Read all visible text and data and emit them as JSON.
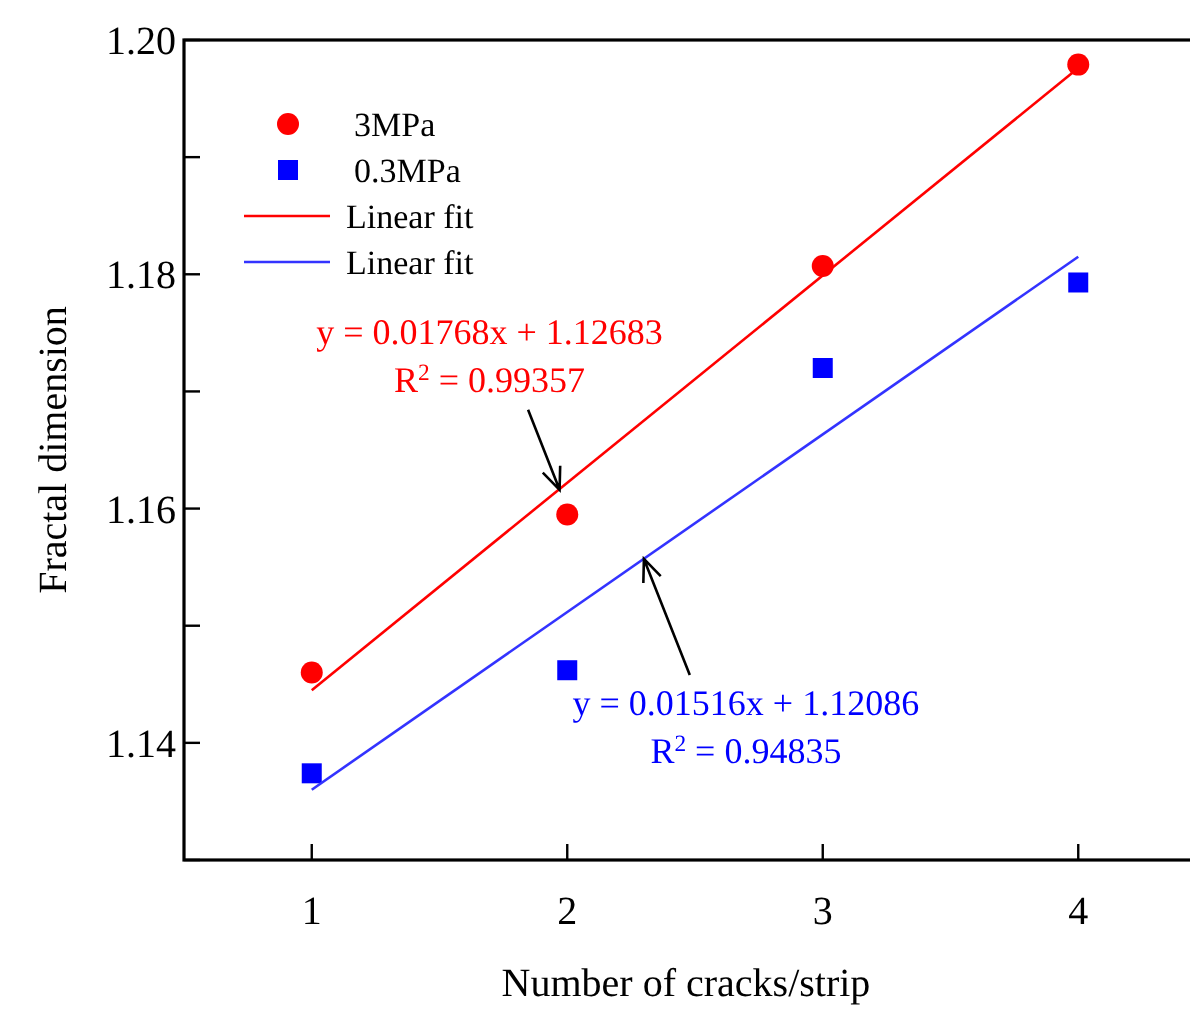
{
  "chart_data": {
    "type": "scatter",
    "xlabel": "Number of cracks/strip",
    "ylabel": "Fractal dimension",
    "xlim": [
      0.5,
      4.5
    ],
    "xticks": [
      1,
      2,
      3,
      4
    ],
    "ylim": [
      1.13,
      1.2
    ],
    "yticks": [
      {
        "value": 1.13,
        "label": null
      },
      {
        "value": 1.14,
        "label": "1.14"
      },
      {
        "value": 1.15,
        "label": null
      },
      {
        "value": 1.16,
        "label": "1.16"
      },
      {
        "value": 1.17,
        "label": null
      },
      {
        "value": 1.18,
        "label": "1.18"
      },
      {
        "value": 1.19,
        "label": null
      },
      {
        "value": 1.2,
        "label": "1.20"
      }
    ],
    "legend": "top left",
    "grid": false,
    "series": [
      {
        "name": "3MPa",
        "marker": "circle",
        "color": "#ff0000",
        "x": [
          1,
          2,
          3,
          4
        ],
        "values": [
          1.146,
          1.1595,
          1.1807,
          1.1979
        ]
      },
      {
        "name": "0.3MPa",
        "marker": "square",
        "color": "#0000ff",
        "x": [
          1,
          2,
          3,
          4
        ],
        "values": [
          1.1374,
          1.1462,
          1.172,
          1.1793
        ]
      },
      {
        "name": "Linear fit",
        "type": "line",
        "marker": "none",
        "color": "#ff0000",
        "x": [
          1,
          4
        ],
        "values": [
          1.1445,
          1.1976
        ]
      },
      {
        "name": "Linear fit",
        "type": "line",
        "marker": "none",
        "color": "#3333ff",
        "x": [
          1,
          4
        ],
        "values": [
          1.136,
          1.1815
        ]
      }
    ],
    "annotations": [
      {
        "text": "y = 0.01768x + 1.12683\nR$^{2}$ = 0.99357",
        "x": 1.97,
        "y": 1.1616
      },
      {
        "text": "y = 0.01516x + 1.12086\nR$^{2}$ = 0.94835",
        "x": 2.3,
        "y": 1.1557
      }
    ]
  }
}
